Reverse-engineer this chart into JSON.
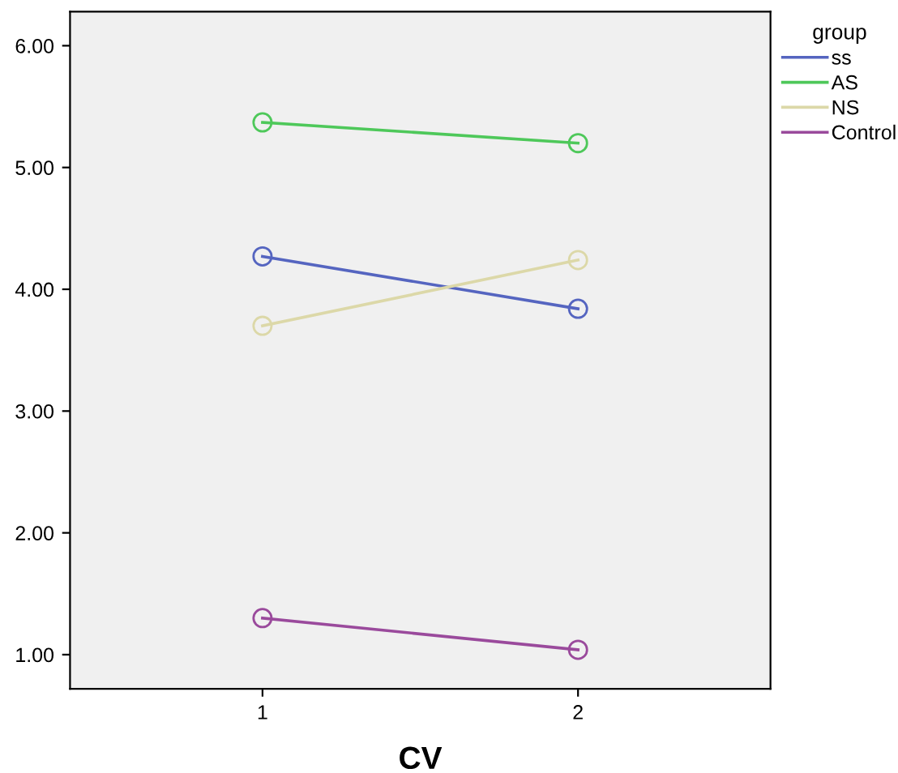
{
  "chart_data": {
    "type": "line",
    "xlabel": "CV",
    "legend_title": "group",
    "x": [
      1,
      2
    ],
    "series": [
      {
        "name": "ss",
        "color": "#5565c0",
        "values": [
          4.27,
          3.84
        ]
      },
      {
        "name": "AS",
        "color": "#4ec85a",
        "values": [
          5.37,
          5.2
        ]
      },
      {
        "name": "NS",
        "color": "#dcd8a8",
        "values": [
          3.7,
          4.24
        ]
      },
      {
        "name": "Control",
        "color": "#9a4a9c",
        "values": [
          1.3,
          1.04
        ]
      }
    ],
    "xlim": [
      0.39,
      2.61
    ],
    "xticks": [
      1,
      2
    ],
    "ylim": [
      0.72,
      6.28
    ],
    "yticks": [
      {
        "value": 1,
        "label": "1.00"
      },
      {
        "value": 2,
        "label": "2.00"
      },
      {
        "value": 3,
        "label": "3.00"
      },
      {
        "value": 4,
        "label": "4.00"
      },
      {
        "value": 5,
        "label": "5.00"
      },
      {
        "value": 6,
        "label": "6.00"
      }
    ],
    "marker": "circle",
    "line_style": "solid",
    "legend": "top right",
    "grid": false
  }
}
